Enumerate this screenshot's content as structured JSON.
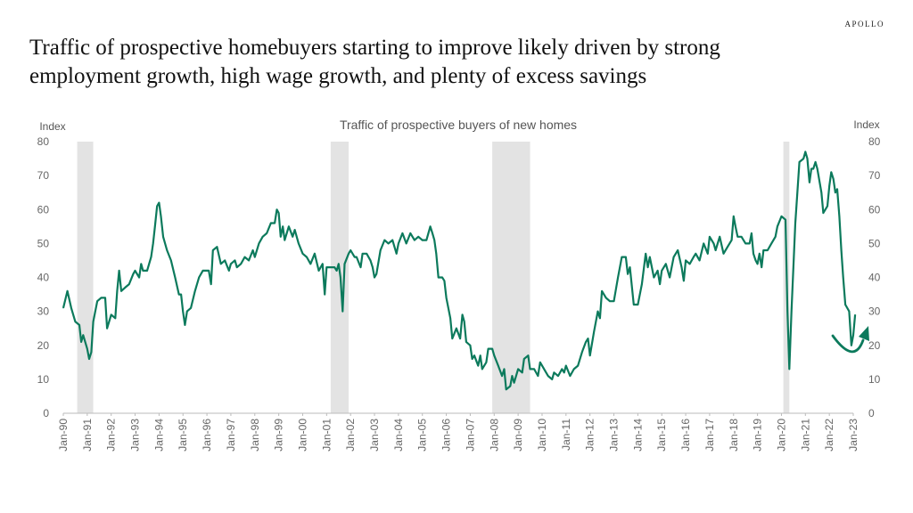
{
  "brand": "APOLLO",
  "headline": {
    "line1": "Traffic of  prospective homebuyers starting to improve likely driven by strong",
    "line2": "employment growth, high wage growth, and plenty of  excess savings"
  },
  "colors": {
    "line": "#0c7a5c",
    "recession": "#e3e3e3",
    "text": "#666666"
  },
  "chart_data": {
    "type": "line",
    "title": "Traffic of prospective buyers of new homes",
    "ylabel_left": "Index",
    "ylabel_right": "Index",
    "ylim": [
      0,
      80
    ],
    "yticks": [
      0,
      10,
      20,
      30,
      40,
      50,
      60,
      70,
      80
    ],
    "xlim": [
      1990.0,
      2023.0
    ],
    "xticks": [
      "Jan-90",
      "Jan-91",
      "Jan-92",
      "Jan-93",
      "Jan-94",
      "Jan-95",
      "Jan-96",
      "Jan-97",
      "Jan-98",
      "Jan-99",
      "Jan-00",
      "Jan-01",
      "Jan-02",
      "Jan-03",
      "Jan-04",
      "Jan-05",
      "Jan-06",
      "Jan-07",
      "Jan-08",
      "Jan-09",
      "Jan-10",
      "Jan-11",
      "Jan-12",
      "Jan-13",
      "Jan-14",
      "Jan-15",
      "Jan-16",
      "Jan-17",
      "Jan-18",
      "Jan-19",
      "Jan-20",
      "Jan-21",
      "Jan-22",
      "Jan-23"
    ],
    "recessions": [
      [
        1990.58,
        1991.25
      ],
      [
        2001.17,
        2001.92
      ],
      [
        2007.92,
        2009.5
      ],
      [
        2020.08,
        2020.33
      ]
    ],
    "annotation": "curved upward arrow indicating recent rebound",
    "series": [
      {
        "points": [
          [
            1990.0,
            31
          ],
          [
            1990.17,
            36
          ],
          [
            1990.33,
            31
          ],
          [
            1990.5,
            27
          ],
          [
            1990.67,
            26
          ],
          [
            1990.75,
            21
          ],
          [
            1990.83,
            23
          ],
          [
            1991.0,
            19
          ],
          [
            1991.08,
            16
          ],
          [
            1991.17,
            18
          ],
          [
            1991.25,
            27
          ],
          [
            1991.42,
            33
          ],
          [
            1991.58,
            34
          ],
          [
            1991.75,
            34
          ],
          [
            1991.83,
            25
          ],
          [
            1992.0,
            29
          ],
          [
            1992.17,
            28
          ],
          [
            1992.25,
            36
          ],
          [
            1992.33,
            42
          ],
          [
            1992.42,
            36
          ],
          [
            1992.58,
            37
          ],
          [
            1992.75,
            38
          ],
          [
            1992.92,
            41
          ],
          [
            1993.0,
            42
          ],
          [
            1993.17,
            40
          ],
          [
            1993.25,
            44
          ],
          [
            1993.33,
            42
          ],
          [
            1993.5,
            42
          ],
          [
            1993.67,
            46
          ],
          [
            1993.75,
            50
          ],
          [
            1993.83,
            55
          ],
          [
            1993.92,
            61
          ],
          [
            1994.0,
            62
          ],
          [
            1994.08,
            58
          ],
          [
            1994.17,
            52
          ],
          [
            1994.33,
            48
          ],
          [
            1994.5,
            45
          ],
          [
            1994.67,
            40
          ],
          [
            1994.83,
            35
          ],
          [
            1994.92,
            35
          ],
          [
            1995.0,
            30
          ],
          [
            1995.08,
            26
          ],
          [
            1995.17,
            30
          ],
          [
            1995.33,
            31
          ],
          [
            1995.5,
            36
          ],
          [
            1995.67,
            40
          ],
          [
            1995.83,
            42
          ],
          [
            1996.0,
            42
          ],
          [
            1996.08,
            42
          ],
          [
            1996.17,
            38
          ],
          [
            1996.25,
            48
          ],
          [
            1996.42,
            49
          ],
          [
            1996.58,
            44
          ],
          [
            1996.75,
            45
          ],
          [
            1996.92,
            42
          ],
          [
            1997.0,
            44
          ],
          [
            1997.17,
            45
          ],
          [
            1997.25,
            43
          ],
          [
            1997.42,
            44
          ],
          [
            1997.58,
            46
          ],
          [
            1997.75,
            45
          ],
          [
            1997.92,
            48
          ],
          [
            1998.0,
            46
          ],
          [
            1998.17,
            50
          ],
          [
            1998.33,
            52
          ],
          [
            1998.5,
            53
          ],
          [
            1998.67,
            56
          ],
          [
            1998.83,
            56
          ],
          [
            1998.92,
            60
          ],
          [
            1999.0,
            59
          ],
          [
            1999.08,
            52
          ],
          [
            1999.17,
            55
          ],
          [
            1999.25,
            51
          ],
          [
            1999.42,
            55
          ],
          [
            1999.58,
            52
          ],
          [
            1999.67,
            54
          ],
          [
            1999.83,
            50
          ],
          [
            2000.0,
            47
          ],
          [
            2000.17,
            46
          ],
          [
            2000.33,
            44
          ],
          [
            2000.5,
            47
          ],
          [
            2000.67,
            42
          ],
          [
            2000.83,
            44
          ],
          [
            2000.92,
            35
          ],
          [
            2001.0,
            43
          ],
          [
            2001.17,
            43
          ],
          [
            2001.33,
            43
          ],
          [
            2001.42,
            42
          ],
          [
            2001.5,
            44
          ],
          [
            2001.58,
            40
          ],
          [
            2001.67,
            30
          ],
          [
            2001.75,
            44
          ],
          [
            2001.92,
            47
          ],
          [
            2002.0,
            48
          ],
          [
            2002.17,
            46
          ],
          [
            2002.25,
            46
          ],
          [
            2002.42,
            43
          ],
          [
            2002.5,
            47
          ],
          [
            2002.67,
            47
          ],
          [
            2002.83,
            45
          ],
          [
            2002.92,
            43
          ],
          [
            2003.0,
            40
          ],
          [
            2003.08,
            41
          ],
          [
            2003.25,
            48
          ],
          [
            2003.42,
            51
          ],
          [
            2003.58,
            50
          ],
          [
            2003.75,
            51
          ],
          [
            2003.92,
            47
          ],
          [
            2004.0,
            50
          ],
          [
            2004.17,
            53
          ],
          [
            2004.33,
            50
          ],
          [
            2004.5,
            53
          ],
          [
            2004.67,
            51
          ],
          [
            2004.83,
            52
          ],
          [
            2005.0,
            51
          ],
          [
            2005.17,
            51
          ],
          [
            2005.33,
            55
          ],
          [
            2005.42,
            53
          ],
          [
            2005.5,
            51
          ],
          [
            2005.58,
            47
          ],
          [
            2005.67,
            40
          ],
          [
            2005.83,
            40
          ],
          [
            2005.92,
            39
          ],
          [
            2006.0,
            34
          ],
          [
            2006.17,
            28
          ],
          [
            2006.25,
            22
          ],
          [
            2006.42,
            25
          ],
          [
            2006.58,
            22
          ],
          [
            2006.67,
            29
          ],
          [
            2006.75,
            27
          ],
          [
            2006.83,
            21
          ],
          [
            2007.0,
            20
          ],
          [
            2007.08,
            16
          ],
          [
            2007.17,
            17
          ],
          [
            2007.33,
            14
          ],
          [
            2007.42,
            17
          ],
          [
            2007.5,
            13
          ],
          [
            2007.67,
            15
          ],
          [
            2007.75,
            19
          ],
          [
            2007.92,
            19
          ],
          [
            2008.0,
            17
          ],
          [
            2008.17,
            14
          ],
          [
            2008.33,
            11
          ],
          [
            2008.42,
            13
          ],
          [
            2008.5,
            7
          ],
          [
            2008.67,
            8
          ],
          [
            2008.75,
            11
          ],
          [
            2008.83,
            9
          ],
          [
            2009.0,
            13
          ],
          [
            2009.17,
            12
          ],
          [
            2009.25,
            16
          ],
          [
            2009.42,
            17
          ],
          [
            2009.5,
            13
          ],
          [
            2009.67,
            13
          ],
          [
            2009.83,
            11
          ],
          [
            2009.92,
            15
          ],
          [
            2010.0,
            14
          ],
          [
            2010.17,
            12
          ],
          [
            2010.25,
            11
          ],
          [
            2010.42,
            10
          ],
          [
            2010.5,
            12
          ],
          [
            2010.67,
            11
          ],
          [
            2010.83,
            13
          ],
          [
            2010.92,
            12
          ],
          [
            2011.0,
            14
          ],
          [
            2011.17,
            11
          ],
          [
            2011.33,
            13
          ],
          [
            2011.5,
            14
          ],
          [
            2011.67,
            18
          ],
          [
            2011.83,
            21
          ],
          [
            2011.92,
            22
          ],
          [
            2012.0,
            17
          ],
          [
            2012.17,
            24
          ],
          [
            2012.33,
            30
          ],
          [
            2012.42,
            28
          ],
          [
            2012.5,
            36
          ],
          [
            2012.67,
            34
          ],
          [
            2012.83,
            33
          ],
          [
            2013.0,
            33
          ],
          [
            2013.17,
            40
          ],
          [
            2013.33,
            46
          ],
          [
            2013.5,
            46
          ],
          [
            2013.58,
            41
          ],
          [
            2013.67,
            43
          ],
          [
            2013.83,
            32
          ],
          [
            2014.0,
            32
          ],
          [
            2014.17,
            38
          ],
          [
            2014.33,
            47
          ],
          [
            2014.42,
            43
          ],
          [
            2014.5,
            46
          ],
          [
            2014.67,
            40
          ],
          [
            2014.83,
            42
          ],
          [
            2014.92,
            38
          ],
          [
            2015.0,
            42
          ],
          [
            2015.17,
            44
          ],
          [
            2015.33,
            40
          ],
          [
            2015.5,
            46
          ],
          [
            2015.67,
            48
          ],
          [
            2015.83,
            43
          ],
          [
            2015.92,
            39
          ],
          [
            2016.0,
            45
          ],
          [
            2016.17,
            44
          ],
          [
            2016.33,
            46
          ],
          [
            2016.42,
            47
          ],
          [
            2016.58,
            45
          ],
          [
            2016.75,
            50
          ],
          [
            2016.92,
            47
          ],
          [
            2017.0,
            52
          ],
          [
            2017.17,
            50
          ],
          [
            2017.25,
            48
          ],
          [
            2017.42,
            52
          ],
          [
            2017.58,
            47
          ],
          [
            2017.75,
            49
          ],
          [
            2017.92,
            51
          ],
          [
            2018.0,
            58
          ],
          [
            2018.08,
            55
          ],
          [
            2018.17,
            52
          ],
          [
            2018.33,
            52
          ],
          [
            2018.5,
            50
          ],
          [
            2018.67,
            50
          ],
          [
            2018.75,
            53
          ],
          [
            2018.83,
            47
          ],
          [
            2018.92,
            45
          ],
          [
            2019.0,
            44
          ],
          [
            2019.08,
            47
          ],
          [
            2019.17,
            43
          ],
          [
            2019.25,
            48
          ],
          [
            2019.42,
            48
          ],
          [
            2019.58,
            50
          ],
          [
            2019.75,
            52
          ],
          [
            2019.83,
            55
          ],
          [
            2020.0,
            58
          ],
          [
            2020.17,
            57
          ],
          [
            2020.25,
            30
          ],
          [
            2020.33,
            13
          ],
          [
            2020.42,
            30
          ],
          [
            2020.58,
            56
          ],
          [
            2020.75,
            74
          ],
          [
            2020.92,
            75
          ],
          [
            2021.0,
            77
          ],
          [
            2021.08,
            75
          ],
          [
            2021.17,
            68
          ],
          [
            2021.25,
            72
          ],
          [
            2021.33,
            72
          ],
          [
            2021.42,
            74
          ],
          [
            2021.5,
            72
          ],
          [
            2021.67,
            65
          ],
          [
            2021.75,
            59
          ],
          [
            2021.92,
            61
          ],
          [
            2022.0,
            67
          ],
          [
            2022.08,
            71
          ],
          [
            2022.17,
            69
          ],
          [
            2022.25,
            65
          ],
          [
            2022.33,
            66
          ],
          [
            2022.42,
            58
          ],
          [
            2022.5,
            48
          ],
          [
            2022.58,
            40
          ],
          [
            2022.67,
            32
          ],
          [
            2022.83,
            30
          ],
          [
            2022.92,
            20
          ],
          [
            2023.0,
            23
          ],
          [
            2023.08,
            29
          ]
        ]
      }
    ]
  }
}
